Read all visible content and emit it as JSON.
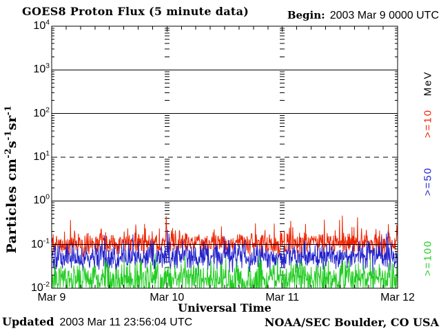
{
  "header": {
    "title": "GOES8 Proton Flux (5 minute data)",
    "begin_label": "Begin:",
    "begin_value": "2003 Mar 9 0000 UTC"
  },
  "footer": {
    "updated_label": "Updated",
    "updated_value": "2003 Mar 11 23:56:04 UTC",
    "credit": "NOAA/SEC Boulder, CO USA"
  },
  "chart_data": {
    "type": "line",
    "title": "GOES8 Proton Flux (5 minute data)",
    "xlabel": "Universal Time",
    "ylabel": "Particles cm⁻²s⁻¹sr⁻¹",
    "ylabel_parts": [
      {
        "text": "Particles cm"
      },
      {
        "sup": "-2"
      },
      {
        "text": "s"
      },
      {
        "sup": "-1"
      },
      {
        "text": "sr"
      },
      {
        "sup": "-1"
      }
    ],
    "yscale": "log",
    "ylim": [
      0.01,
      10000
    ],
    "ytick_exponents": [
      4,
      3,
      2,
      1,
      0,
      -1,
      -2
    ],
    "xtick_labels": [
      "Mar 9",
      "Mar 10",
      "Mar 11",
      "Mar 12"
    ],
    "x_start": "2003 Mar 9 0000 UTC",
    "duration_days": 3,
    "cadence_minutes": 5,
    "grid": {
      "solid_decades": [
        3,
        2,
        0,
        -1
      ],
      "dashed_decades": [
        1
      ],
      "day_boundary_tick_columns": true
    },
    "legend": {
      "title": "MeV"
    },
    "axis_color": "#000000",
    "background_color": "#ffffff",
    "series": [
      {
        "name": ">=10",
        "unit": "MeV",
        "color": "#ee2200",
        "summary": {
          "median_flux": 0.11,
          "typical_range": [
            0.06,
            0.3
          ],
          "peak": 0.5
        },
        "gen": {
          "seed": 90311,
          "log10_base": -0.98,
          "log10_sigma": 0.13,
          "spike_prob": 0.08,
          "spike_log10_max": 0.55
        }
      },
      {
        "name": ">=50",
        "unit": "MeV",
        "color": "#2222cc",
        "summary": {
          "median_flux": 0.05,
          "typical_range": [
            0.02,
            0.15
          ],
          "peak": 0.2
        },
        "gen": {
          "seed": 50050,
          "log10_base": -1.28,
          "log10_sigma": 0.15,
          "spike_prob": 0.05,
          "spike_log10_max": 0.5
        }
      },
      {
        "name": ">=100",
        "unit": "MeV",
        "color": "#22cc22",
        "summary": {
          "median_flux": 0.016,
          "typical_range": [
            0.01,
            0.06
          ],
          "peak": 0.08
        },
        "gen": {
          "seed": 10007,
          "log10_base": -1.8,
          "log10_sigma": 0.2,
          "spike_prob": 0.04,
          "spike_log10_max": 0.4
        }
      }
    ]
  }
}
